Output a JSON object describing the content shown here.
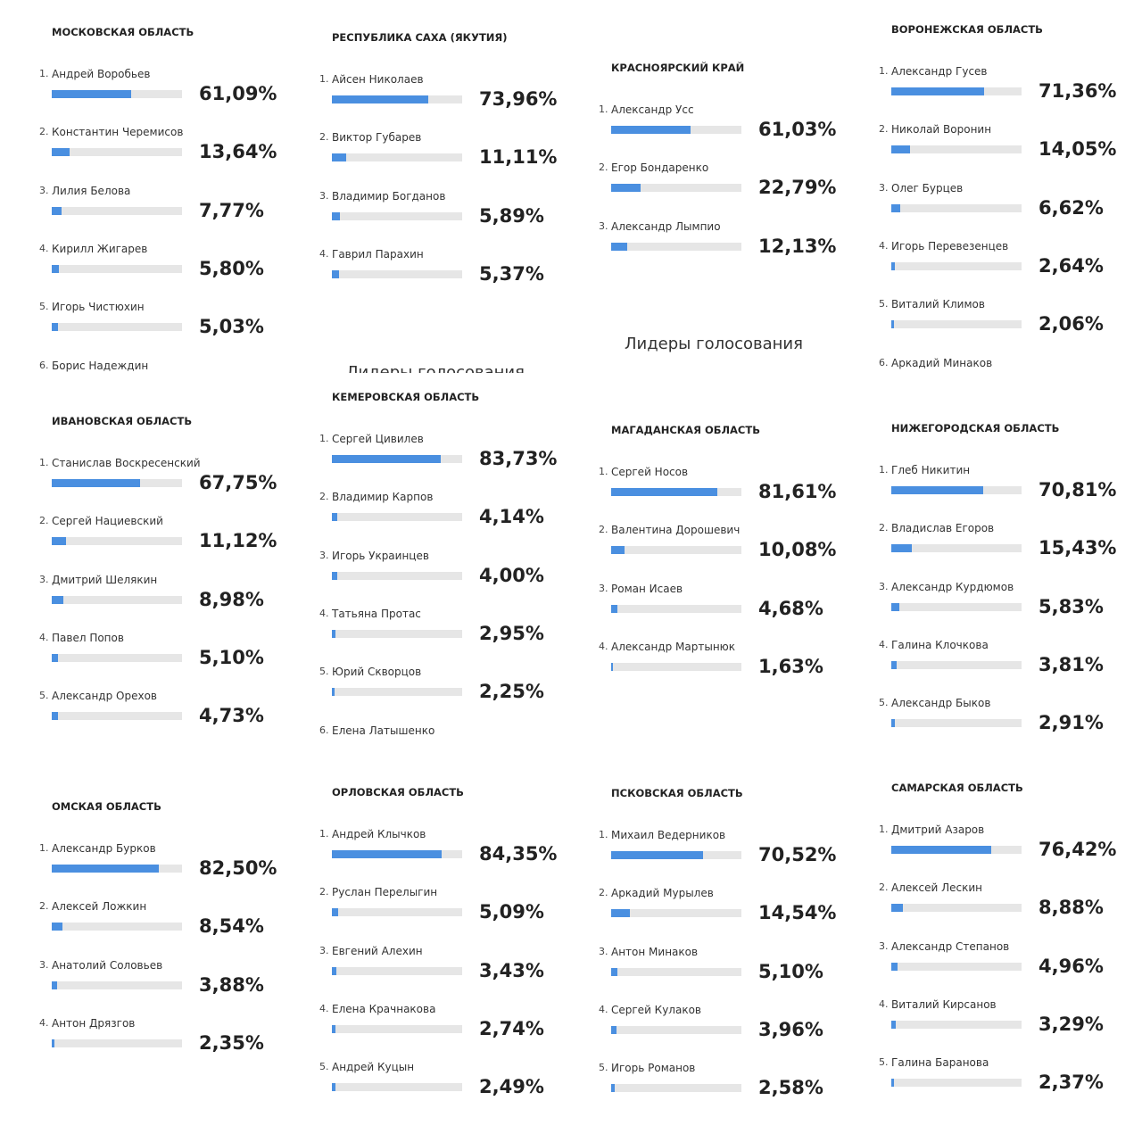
{
  "heading": "Лидеры голосования",
  "panels": [
    {
      "title": "Московская область",
      "candidates": [
        {
          "rank": "1.",
          "name": "Андрей Воробьев",
          "value": 61.09,
          "value_label": "61,09%"
        },
        {
          "rank": "2.",
          "name": "Константин Черемисов",
          "value": 13.64,
          "value_label": "13,64%"
        },
        {
          "rank": "3.",
          "name": "Лилия Белова",
          "value": 7.77,
          "value_label": "7,77%"
        },
        {
          "rank": "4.",
          "name": "Кирилл Жигарев",
          "value": 5.8,
          "value_label": "5,80%"
        },
        {
          "rank": "5.",
          "name": "Игорь Чистюхин",
          "value": 5.03,
          "value_label": "5,03%"
        },
        {
          "rank": "6.",
          "name": "Борис Надеждин"
        }
      ]
    },
    {
      "title": "Республика Саха (Якутия)",
      "candidates": [
        {
          "rank": "1.",
          "name": "Айсен Николаев",
          "value": 73.96,
          "value_label": "73,96%"
        },
        {
          "rank": "2.",
          "name": "Виктор Губарев",
          "value": 11.11,
          "value_label": "11,11%"
        },
        {
          "rank": "3.",
          "name": "Владимир Богданов",
          "value": 5.89,
          "value_label": "5,89%"
        },
        {
          "rank": "4.",
          "name": "Гаврил Парахин",
          "value": 5.37,
          "value_label": "5,37%"
        }
      ]
    },
    {
      "title": "Красноярский край",
      "candidates": [
        {
          "rank": "1.",
          "name": "Александр Усс",
          "value": 61.03,
          "value_label": "61,03%"
        },
        {
          "rank": "2.",
          "name": "Егор Бондаренко",
          "value": 22.79,
          "value_label": "22,79%"
        },
        {
          "rank": "3.",
          "name": "Александр Лымпио",
          "value": 12.13,
          "value_label": "12,13%"
        }
      ]
    },
    {
      "title": "Воронежская область",
      "candidates": [
        {
          "rank": "1.",
          "name": "Александр Гусев",
          "value": 71.36,
          "value_label": "71,36%"
        },
        {
          "rank": "2.",
          "name": "Николай Воронин",
          "value": 14.05,
          "value_label": "14,05%"
        },
        {
          "rank": "3.",
          "name": "Олег Бурцев",
          "value": 6.62,
          "value_label": "6,62%"
        },
        {
          "rank": "4.",
          "name": "Игорь Перевезенцев",
          "value": 2.64,
          "value_label": "2,64%"
        },
        {
          "rank": "5.",
          "name": "Виталий Климов",
          "value": 2.06,
          "value_label": "2,06%"
        },
        {
          "rank": "6.",
          "name": "Аркадий Минаков"
        }
      ]
    },
    {
      "title": "Ивановская область",
      "candidates": [
        {
          "rank": "1.",
          "name": "Станислав Воскресенский",
          "value": 67.75,
          "value_label": "67,75%"
        },
        {
          "rank": "2.",
          "name": "Сергей Нациевский",
          "value": 11.12,
          "value_label": "11,12%"
        },
        {
          "rank": "3.",
          "name": "Дмитрий Шелякин",
          "value": 8.98,
          "value_label": "8,98%"
        },
        {
          "rank": "4.",
          "name": "Павел Попов",
          "value": 5.1,
          "value_label": "5,10%"
        },
        {
          "rank": "5.",
          "name": "Александр Орехов",
          "value": 4.73,
          "value_label": "4,73%"
        }
      ]
    },
    {
      "title": "Кемеровская область",
      "candidates": [
        {
          "rank": "1.",
          "name": "Сергей Цивилев",
          "value": 83.73,
          "value_label": "83,73%"
        },
        {
          "rank": "2.",
          "name": "Владимир Карпов",
          "value": 4.14,
          "value_label": "4,14%"
        },
        {
          "rank": "3.",
          "name": "Игорь Украинцев",
          "value": 4,
          "value_label": "4,00%"
        },
        {
          "rank": "4.",
          "name": "Татьяна Протас",
          "value": 2.95,
          "value_label": "2,95%"
        },
        {
          "rank": "5.",
          "name": "Юрий Скворцов",
          "value": 2.25,
          "value_label": "2,25%"
        },
        {
          "rank": "6.",
          "name": "Елена Латышенко"
        }
      ]
    },
    {
      "title": "Магаданская область",
      "candidates": [
        {
          "rank": "1.",
          "name": "Сергей Носов",
          "value": 81.61,
          "value_label": "81,61%"
        },
        {
          "rank": "2.",
          "name": "Валентина Дорошевич",
          "value": 10.08,
          "value_label": "10,08%"
        },
        {
          "rank": "3.",
          "name": "Роман Исаев",
          "value": 4.68,
          "value_label": "4,68%"
        },
        {
          "rank": "4.",
          "name": "Александр Мартынюк",
          "value": 1.63,
          "value_label": "1,63%"
        }
      ]
    },
    {
      "title": "Нижегородская область",
      "candidates": [
        {
          "rank": "1.",
          "name": "Глеб Никитин",
          "value": 70.81,
          "value_label": "70,81%"
        },
        {
          "rank": "2.",
          "name": "Владислав Егоров",
          "value": 15.43,
          "value_label": "15,43%"
        },
        {
          "rank": "3.",
          "name": "Александр Курдюмов",
          "value": 5.83,
          "value_label": "5,83%"
        },
        {
          "rank": "4.",
          "name": "Галина Клочкова",
          "value": 3.81,
          "value_label": "3,81%"
        },
        {
          "rank": "5.",
          "name": "Александр Быков",
          "value": 2.91,
          "value_label": "2,91%"
        }
      ]
    },
    {
      "title": "Омская область",
      "candidates": [
        {
          "rank": "1.",
          "name": "Александр Бурков",
          "value": 82.5,
          "value_label": "82,50%"
        },
        {
          "rank": "2.",
          "name": "Алексей Ложкин",
          "value": 8.54,
          "value_label": "8,54%"
        },
        {
          "rank": "3.",
          "name": "Анатолий Соловьев",
          "value": 3.88,
          "value_label": "3,88%"
        },
        {
          "rank": "4.",
          "name": "Антон Дрязгов",
          "value": 2.35,
          "value_label": "2,35%"
        }
      ]
    },
    {
      "title": "Орловская область",
      "candidates": [
        {
          "rank": "1.",
          "name": "Андрей Клычков",
          "value": 84.35,
          "value_label": "84,35%"
        },
        {
          "rank": "2.",
          "name": "Руслан Перелыгин",
          "value": 5.09,
          "value_label": "5,09%"
        },
        {
          "rank": "3.",
          "name": "Евгений Алехин",
          "value": 3.43,
          "value_label": "3,43%"
        },
        {
          "rank": "4.",
          "name": "Елена Крачнакова",
          "value": 2.74,
          "value_label": "2,74%"
        },
        {
          "rank": "5.",
          "name": "Андрей Куцын",
          "value": 2.49,
          "value_label": "2,49%"
        }
      ]
    },
    {
      "title": "Псковская область",
      "candidates": [
        {
          "rank": "1.",
          "name": "Михаил Ведерников",
          "value": 70.52,
          "value_label": "70,52%"
        },
        {
          "rank": "2.",
          "name": "Аркадий Мурылев",
          "value": 14.54,
          "value_label": "14,54%"
        },
        {
          "rank": "3.",
          "name": "Антон Минаков",
          "value": 5.1,
          "value_label": "5,10%"
        },
        {
          "rank": "4.",
          "name": "Сергей Кулаков",
          "value": 3.96,
          "value_label": "3,96%"
        },
        {
          "rank": "5.",
          "name": "Игорь Романов",
          "value": 2.58,
          "value_label": "2,58%"
        }
      ]
    },
    {
      "title": "Самарская область",
      "candidates": [
        {
          "rank": "1.",
          "name": "Дмитрий Азаров",
          "value": 76.42,
          "value_label": "76,42%"
        },
        {
          "rank": "2.",
          "name": "Алексей Лескин",
          "value": 8.88,
          "value_label": "8,88%"
        },
        {
          "rank": "3.",
          "name": "Александр Степанов",
          "value": 4.96,
          "value_label": "4,96%"
        },
        {
          "rank": "4.",
          "name": "Виталий Кирсанов",
          "value": 3.29,
          "value_label": "3,29%"
        },
        {
          "rank": "5.",
          "name": "Галина Баранова",
          "value": 2.37,
          "value_label": "2,37%"
        }
      ]
    }
  ]
}
